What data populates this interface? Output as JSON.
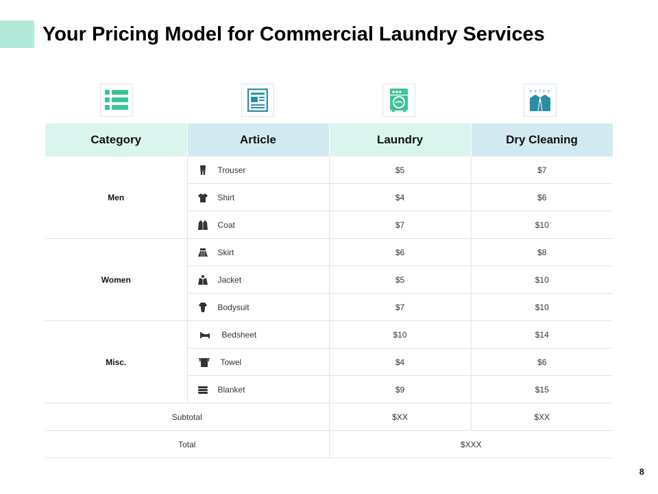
{
  "title": "Your Pricing Model for Commercial Laundry Services",
  "accent_color": "#b2e9d9",
  "header_icons": [
    "list-icon",
    "document-icon",
    "washing-machine-icon",
    "dry-cleaning-shirt-icon"
  ],
  "table": {
    "headers": [
      "Category",
      "Article",
      "Laundry",
      "Dry Cleaning"
    ],
    "groups": [
      {
        "category": "Men",
        "rows": [
          {
            "icon": "trouser-icon",
            "article": "Trouser",
            "laundry": "$5",
            "dry": "$7"
          },
          {
            "icon": "shirt-icon",
            "article": "Shirt",
            "laundry": "$4",
            "dry": "$6"
          },
          {
            "icon": "coat-icon",
            "article": "Coat",
            "laundry": "$7",
            "dry": "$10"
          }
        ]
      },
      {
        "category": "Women",
        "rows": [
          {
            "icon": "skirt-icon",
            "article": "Skirt",
            "laundry": "$6",
            "dry": "$8"
          },
          {
            "icon": "jacket-icon",
            "article": "Jacket",
            "laundry": "$5",
            "dry": "$10"
          },
          {
            "icon": "bodysuit-icon",
            "article": "Bodysuit",
            "laundry": "$7",
            "dry": "$10"
          }
        ]
      },
      {
        "category": "Misc.",
        "rows": [
          {
            "icon": "bedsheet-icon",
            "article": "Bedsheet",
            "laundry": "$10",
            "dry": "$14"
          },
          {
            "icon": "towel-icon",
            "article": "Towel",
            "laundry": "$4",
            "dry": "$6"
          },
          {
            "icon": "blanket-icon",
            "article": "Blanket",
            "laundry": "$9",
            "dry": "$15"
          }
        ]
      }
    ],
    "subtotal": {
      "label": "Subtotal",
      "laundry": "$XX",
      "dry": "$XX"
    },
    "total": {
      "label": "Total",
      "value": "$XXX"
    }
  },
  "page_number": "8"
}
